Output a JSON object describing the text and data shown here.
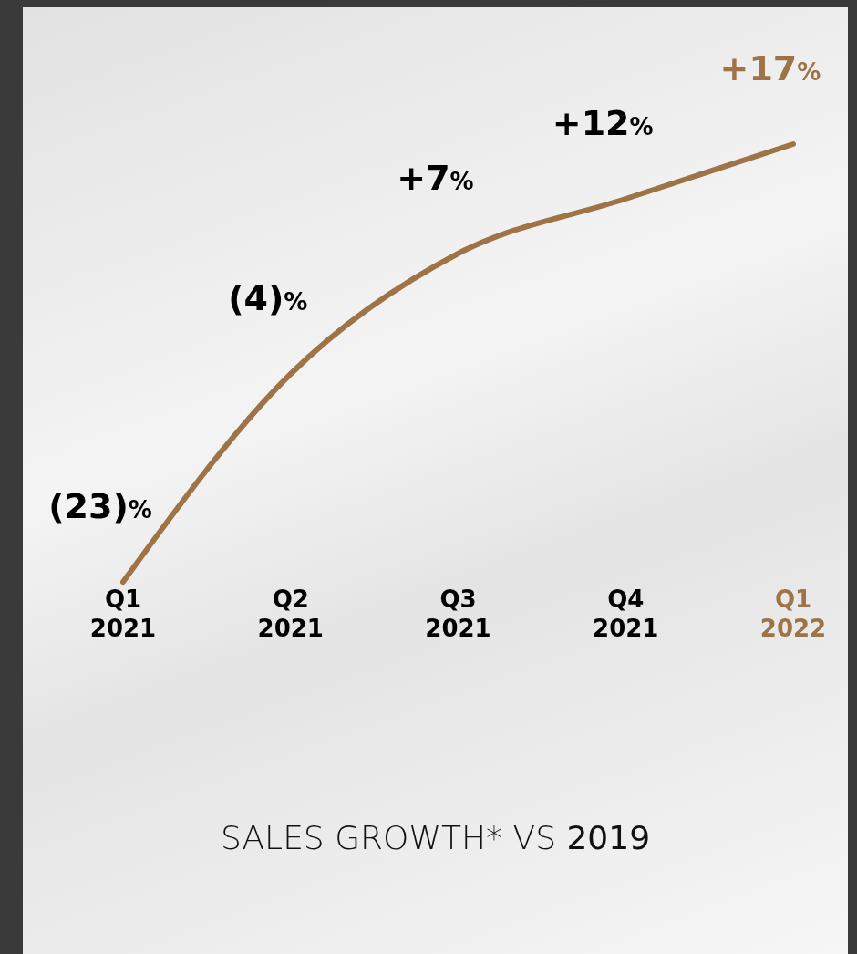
{
  "chart_data": {
    "type": "line",
    "title": "SALES GROWTH* VS 2019",
    "categories": [
      "Q1 2021",
      "Q2 2021",
      "Q3 2021",
      "Q4 2021",
      "Q1 2022"
    ],
    "series": [
      {
        "color": "#9e7346",
        "values": [
          -23,
          -4,
          7,
          12,
          17
        ],
        "value_labels": [
          "(23)%",
          "(4)%",
          "+7%",
          "+12%",
          "+17%"
        ],
        "colors": [
          "#000000",
          "#000000",
          "#000000",
          "#000000",
          "#9e7346"
        ]
      }
    ],
    "marker": "none"
  }
}
